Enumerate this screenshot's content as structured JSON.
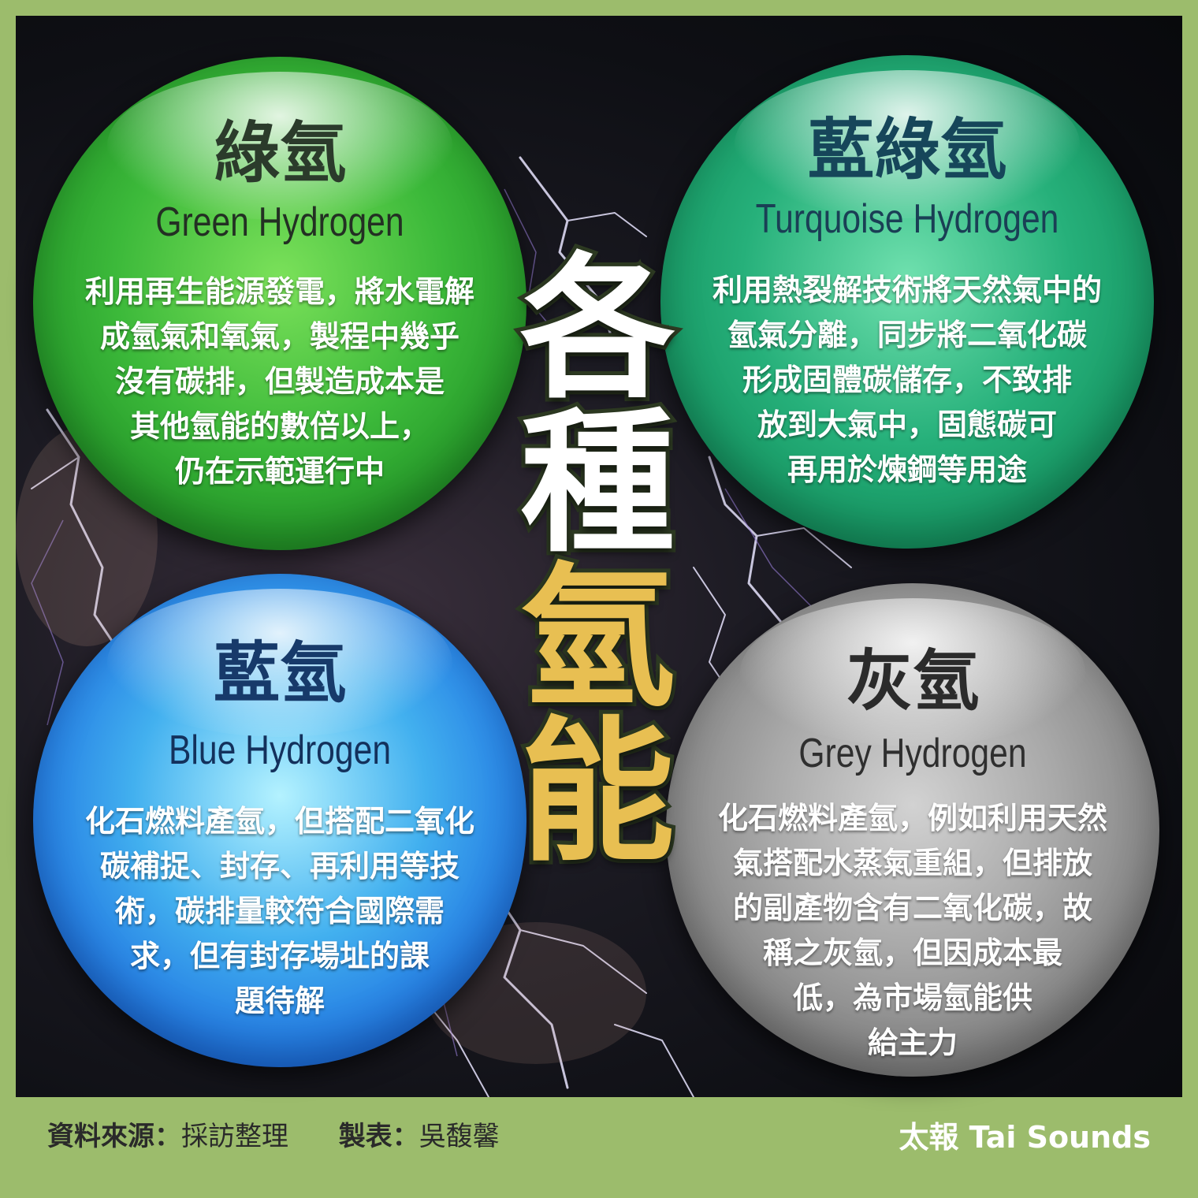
{
  "center_title": [
    "各",
    "種",
    "氫",
    "能"
  ],
  "cards": {
    "green": {
      "zh": "綠氫",
      "en": "Green Hydrogen",
      "desc": "利用再生能源發電，將水電解\n成氫氣和氧氣，製程中幾乎\n沒有碳排，但製造成本是\n其他氫能的數倍以上，\n仍在示範運行中"
    },
    "turquoise": {
      "zh": "藍綠氫",
      "en": "Turquoise Hydrogen",
      "desc": "利用熱裂解技術將天然氣中的\n氫氣分離，同步將二氧化碳\n形成固體碳儲存，不致排\n放到大氣中，固態碳可\n再用於煉鋼等用途"
    },
    "blue": {
      "zh": "藍氫",
      "en": "Blue Hydrogen",
      "desc": "化石燃料產氫，但搭配二氧化\n碳補捉、封存、再利用等技\n術，碳排量較符合國際需\n求，但有封存場址的課\n題待解"
    },
    "grey": {
      "zh": "灰氫",
      "en": "Grey Hydrogen",
      "desc": "化石燃料產氫，例如利用天然\n氣搭配水蒸氣重組，但排放\n的副產物含有二氧化碳，故\n稱之灰氫，但因成本最\n低，為市場氫能供\n給主力"
    }
  },
  "footer": {
    "source_label": "資料來源：",
    "source_value": "採訪整理",
    "maker_label": "製表：",
    "maker_value": "吳馥馨",
    "brand": "太報 Tai Sounds"
  },
  "colors": {
    "frame": "#9cbc6c",
    "center_outline": "#2d3a22",
    "center_gold": "#e8bf52"
  }
}
